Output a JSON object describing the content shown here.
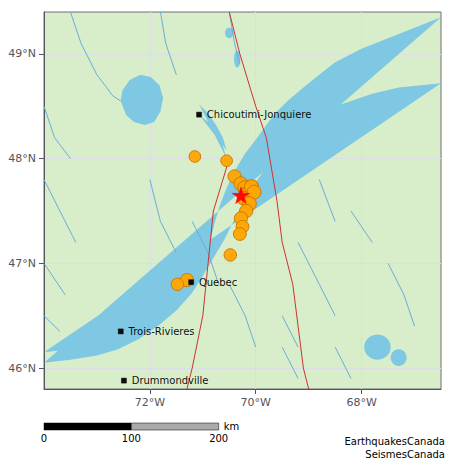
{
  "chart_data": {
    "type": "scatter",
    "xlim": [
      -74.0,
      -66.5
    ],
    "ylim": [
      45.8,
      49.4
    ],
    "xticks": [
      {
        "value": -72,
        "label": "72°W"
      },
      {
        "value": -70,
        "label": "70°W"
      },
      {
        "value": -68,
        "label": "68°W"
      }
    ],
    "yticks": [
      {
        "value": 46,
        "label": "46°N"
      },
      {
        "value": 47,
        "label": "47°N"
      },
      {
        "value": 48,
        "label": "48°N"
      },
      {
        "value": 49,
        "label": "49°N"
      }
    ],
    "grid": true,
    "background": "#d8edca",
    "series": [
      {
        "type": "polygon",
        "color": "#7ec8e3",
        "polygons": [
          [
            [
              -74.0,
              46.05
            ],
            [
              -73.5,
              46.08
            ],
            [
              -73.0,
              46.12
            ],
            [
              -72.6,
              46.18
            ],
            [
              -72.2,
              46.28
            ],
            [
              -71.8,
              46.42
            ],
            [
              -71.5,
              46.55
            ],
            [
              -71.2,
              46.72
            ],
            [
              -71.0,
              46.88
            ],
            [
              -70.8,
              47.05
            ],
            [
              -70.6,
              47.22
            ],
            [
              -70.4,
              47.42
            ],
            [
              -70.2,
              47.6
            ],
            [
              -70.0,
              47.78
            ],
            [
              -69.7,
              47.98
            ],
            [
              -69.4,
              48.18
            ],
            [
              -69.0,
              48.35
            ],
            [
              -68.6,
              48.48
            ],
            [
              -68.2,
              48.55
            ],
            [
              -67.8,
              48.62
            ],
            [
              -67.3,
              48.68
            ],
            [
              -66.5,
              48.72
            ],
            [
              -74.0,
              46.15
            ],
            [
              -73.5,
              46.18
            ],
            [
              -73.0,
              46.22
            ],
            [
              -72.6,
              46.28
            ],
            [
              -72.2,
              46.35
            ],
            [
              -71.9,
              46.42
            ],
            [
              -71.6,
              46.55
            ],
            [
              -71.4,
              46.65
            ],
            [
              -71.2,
              46.78
            ],
            [
              -71.1,
              46.85
            ],
            [
              -71.0,
              46.95
            ],
            [
              -70.92,
              47.05
            ],
            [
              -70.85,
              47.22
            ],
            [
              -70.78,
              47.38
            ],
            [
              -70.68,
              47.55
            ],
            [
              -70.55,
              47.72
            ],
            [
              -70.4,
              47.88
            ],
            [
              -70.2,
              48.05
            ],
            [
              -70.0,
              48.18
            ],
            [
              -69.8,
              48.32
            ],
            [
              -69.6,
              48.45
            ],
            [
              -69.4,
              48.55
            ],
            [
              -69.1,
              48.68
            ],
            [
              -68.8,
              48.8
            ],
            [
              -68.5,
              48.92
            ],
            [
              -68.0,
              49.05
            ],
            [
              -67.5,
              49.15
            ],
            [
              -67.0,
              49.25
            ],
            [
              -66.5,
              49.35
            ]
          ],
          [
            [
              -71.07,
              48.42
            ],
            [
              -70.9,
              48.35
            ],
            [
              -70.75,
              48.25
            ],
            [
              -70.62,
              48.12
            ],
            [
              -70.55,
              48.0
            ],
            [
              -71.07,
              48.52
            ],
            [
              -70.9,
              48.43
            ],
            [
              -70.75,
              48.32
            ],
            [
              -70.62,
              48.2
            ],
            [
              -70.55,
              48.08
            ]
          ],
          [
            [
              -72.55,
              48.55
            ],
            [
              -72.45,
              48.42
            ],
            [
              -72.3,
              48.35
            ],
            [
              -72.1,
              48.32
            ],
            [
              -71.92,
              48.35
            ],
            [
              -71.8,
              48.45
            ],
            [
              -71.75,
              48.58
            ],
            [
              -71.82,
              48.7
            ],
            [
              -71.98,
              48.78
            ],
            [
              -72.18,
              48.8
            ],
            [
              -72.38,
              48.75
            ],
            [
              -72.52,
              48.65
            ],
            [
              -72.55,
              48.55
            ]
          ]
        ]
      },
      {
        "type": "ellipse",
        "color": "#7ec8e3",
        "x": [
          -70.5,
          -70.35,
          -67.7,
          -67.3
        ],
        "y": [
          49.2,
          48.95,
          46.2,
          46.1
        ],
        "x_radius": [
          0.08,
          0.06,
          0.25,
          0.15
        ],
        "y_radius": [
          0.05,
          0.08,
          0.12,
          0.08
        ]
      },
      {
        "type": "line",
        "color": "#6baed6",
        "paths": [
          [
            [
              -73.5,
              49.4
            ],
            [
              -73.3,
              49.1
            ],
            [
              -73.0,
              48.8
            ],
            [
              -72.7,
              48.6
            ]
          ],
          [
            [
              -72.7,
              48.6
            ],
            [
              -72.55,
              48.55
            ]
          ],
          [
            [
              -71.8,
              49.4
            ],
            [
              -71.7,
              49.1
            ],
            [
              -71.5,
              48.8
            ]
          ],
          [
            [
              -70.5,
              49.4
            ],
            [
              -70.4,
              49.1
            ],
            [
              -70.3,
              48.9
            ]
          ],
          [
            [
              -74.0,
              48.5
            ],
            [
              -73.8,
              48.2
            ],
            [
              -73.5,
              48.0
            ]
          ],
          [
            [
              -74.0,
              47.8
            ],
            [
              -73.7,
              47.5
            ],
            [
              -73.4,
              47.2
            ]
          ],
          [
            [
              -74.0,
              47.0
            ],
            [
              -73.6,
              46.7
            ]
          ],
          [
            [
              -74.0,
              46.5
            ],
            [
              -73.7,
              46.35
            ]
          ],
          [
            [
              -72.0,
              47.8
            ],
            [
              -71.8,
              47.4
            ],
            [
              -71.5,
              47.1
            ]
          ],
          [
            [
              -71.2,
              47.4
            ],
            [
              -70.9,
              47.1
            ],
            [
              -70.7,
              46.8
            ]
          ],
          [
            [
              -70.5,
              46.8
            ],
            [
              -70.2,
              46.5
            ],
            [
              -70.0,
              46.2
            ]
          ],
          [
            [
              -69.5,
              46.5
            ],
            [
              -69.2,
              46.2
            ]
          ],
          [
            [
              -69.2,
              47.2
            ],
            [
              -68.8,
              46.8
            ],
            [
              -68.5,
              46.5
            ]
          ],
          [
            [
              -68.8,
              47.8
            ],
            [
              -68.5,
              47.4
            ]
          ],
          [
            [
              -68.2,
              47.5
            ],
            [
              -67.8,
              47.2
            ]
          ],
          [
            [
              -67.5,
              47.0
            ],
            [
              -67.2,
              46.7
            ],
            [
              -67.0,
              46.4
            ]
          ],
          [
            [
              -69.5,
              46.2
            ],
            [
              -69.2,
              45.9
            ]
          ],
          [
            [
              -68.5,
              46.2
            ],
            [
              -68.2,
              45.9
            ]
          ]
        ]
      },
      {
        "type": "line",
        "color": "#cc3333",
        "paths": [
          [
            [
              -70.5,
              49.4
            ],
            [
              -70.3,
              49.0
            ],
            [
              -70.0,
              48.5
            ],
            [
              -69.8,
              48.2
            ],
            [
              -69.7,
              47.9
            ],
            [
              -69.6,
              47.6
            ],
            [
              -69.5,
              47.2
            ],
            [
              -69.3,
              46.8
            ],
            [
              -69.2,
              46.4
            ],
            [
              -69.1,
              46.0
            ],
            [
              -69.0,
              45.8
            ]
          ],
          [
            [
              -70.5,
              48.0
            ],
            [
              -70.8,
              47.5
            ],
            [
              -70.9,
              47.0
            ],
            [
              -71.0,
              46.5
            ],
            [
              -71.2,
              46.0
            ],
            [
              -71.3,
              45.8
            ]
          ]
        ]
      },
      {
        "type": "scatter",
        "marker": "circle",
        "color": "#FFA500",
        "edge_color": "#cc7700",
        "x": [
          -71.15,
          -70.55,
          -70.4,
          -70.28,
          -70.2,
          -70.15,
          -70.22,
          -70.08,
          -70.03,
          -70.12,
          -70.18,
          -70.28,
          -70.25,
          -70.3,
          -70.48,
          -71.3,
          -71.48
        ],
        "y": [
          48.02,
          47.98,
          47.83,
          47.76,
          47.72,
          47.67,
          47.62,
          47.73,
          47.68,
          47.57,
          47.5,
          47.43,
          47.35,
          47.28,
          47.08,
          46.84,
          46.8
        ],
        "sizes": [
          70,
          70,
          90,
          100,
          110,
          95,
          95,
          105,
          100,
          100,
          90,
          90,
          85,
          85,
          80,
          90,
          80
        ]
      },
      {
        "type": "scatter",
        "marker": "star",
        "color": "#FF0000",
        "x": [
          -70.28
        ],
        "y": [
          47.65
        ],
        "sizes": [
          160
        ]
      },
      {
        "type": "scatter",
        "marker": "square",
        "color": "#000000",
        "x": [
          -71.07,
          -71.22,
          -72.55,
          -72.49
        ],
        "y": [
          48.42,
          46.82,
          46.35,
          45.88
        ],
        "labels": [
          "Chicoutimi-Jonquiere",
          "Quebec",
          "Trois-Rivieres",
          "Drummondville"
        ]
      }
    ],
    "scale_bar": {
      "ticks": [
        0,
        100,
        200
      ],
      "unit": "km",
      "colors": [
        "#000000",
        "#aaaaaa"
      ]
    },
    "credit": "EarthquakesCanada\nSeismesCanada"
  }
}
